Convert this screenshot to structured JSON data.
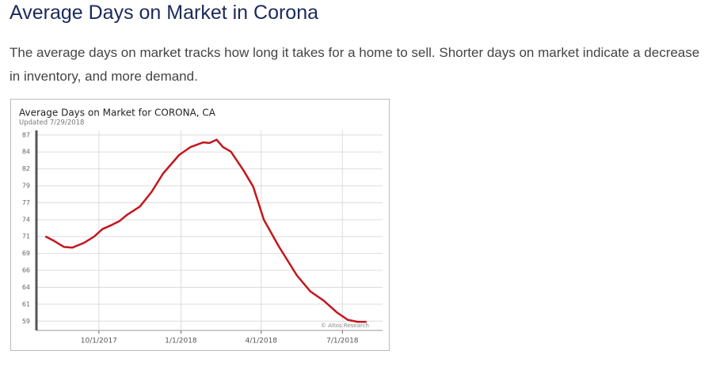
{
  "header": {
    "title": "Average Days on Market in Corona"
  },
  "intro": "The average days on market tracks how long it takes for a home to sell. Shorter days on market indicate a decrease in inventory, and more demand.",
  "chart_data": {
    "type": "line",
    "title": "Average Days on Market for CORONA, CA",
    "subtitle": "Updated 7/29/2018",
    "annotation": "© Altos Research",
    "x": [
      "2017-08-02",
      "2017-08-12",
      "2017-08-23",
      "2017-09-01",
      "2017-09-14",
      "2017-09-26",
      "2017-10-05",
      "2017-10-15",
      "2017-10-24",
      "2017-11-02",
      "2017-11-16",
      "2017-11-29",
      "2017-12-12",
      "2017-12-30",
      "2018-01-12",
      "2018-01-26",
      "2018-02-02",
      "2018-02-10",
      "2018-02-17",
      "2018-02-26",
      "2018-03-12",
      "2018-03-23",
      "2018-04-04",
      "2018-04-21",
      "2018-05-11",
      "2018-05-26",
      "2018-06-10",
      "2018-06-25",
      "2018-07-07",
      "2018-07-18",
      "2018-07-28"
    ],
    "series": [
      {
        "name": "Average Days on Market",
        "color": "#c4161c",
        "values": [
          71.5,
          70.8,
          69.9,
          69.8,
          70.5,
          71.5,
          72.6,
          73.2,
          73.8,
          74.8,
          76.0,
          78.2,
          81.0,
          83.8,
          85.0,
          85.7,
          85.6,
          86.1,
          85.0,
          84.3,
          81.5,
          79.0,
          74.0,
          69.9,
          65.6,
          63.2,
          61.8,
          60.0,
          58.9,
          58.6,
          58.6
        ]
      }
    ],
    "xlim": [
      "2017-07-23",
      "2018-08-15"
    ],
    "xticks": [
      {
        "value": "2017-10-01",
        "label": "10/1/2017"
      },
      {
        "value": "2018-01-01",
        "label": "1/1/2018"
      },
      {
        "value": "2018-04-01",
        "label": "4/1/2018"
      },
      {
        "value": "2018-07-01",
        "label": "7/1/2018"
      }
    ],
    "ylim": [
      57.3,
      87.5
    ],
    "yticks": [
      {
        "value": 58.7,
        "label": "59"
      },
      {
        "value": 61.255,
        "label": "61"
      },
      {
        "value": 63.81,
        "label": "64"
      },
      {
        "value": 66.365,
        "label": "66"
      },
      {
        "value": 68.92,
        "label": "69"
      },
      {
        "value": 71.475,
        "label": "71"
      },
      {
        "value": 74.03,
        "label": "74"
      },
      {
        "value": 76.585,
        "label": "77"
      },
      {
        "value": 79.14,
        "label": "79"
      },
      {
        "value": 81.695,
        "label": "82"
      },
      {
        "value": 84.25,
        "label": "84"
      },
      {
        "value": 86.805,
        "label": "87"
      }
    ],
    "grid": true
  }
}
